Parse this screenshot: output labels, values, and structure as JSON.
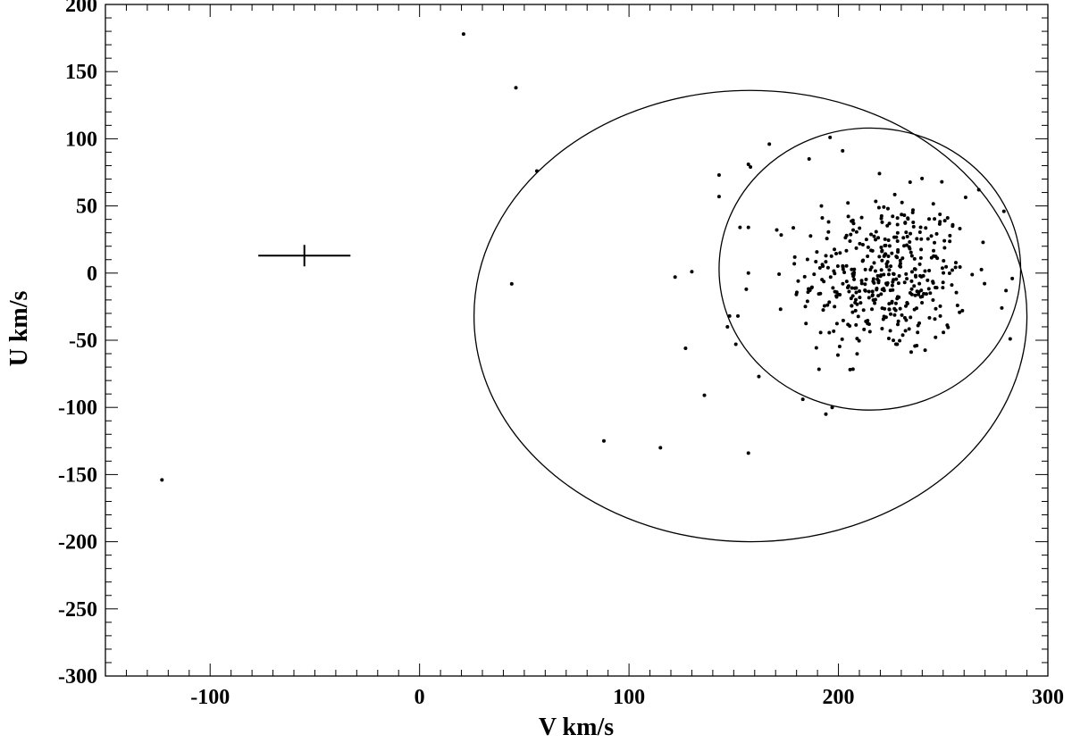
{
  "chart_data": {
    "type": "scatter",
    "title": "",
    "xlabel": "V km/s",
    "ylabel": "U km/s",
    "xlim": [
      -150,
      300
    ],
    "ylim": [
      -300,
      200
    ],
    "x_major_ticks": [
      -100,
      0,
      100,
      200,
      300
    ],
    "x_tick_labels": [
      "-100",
      "0",
      "100",
      "200",
      "300"
    ],
    "y_major_ticks": [
      200,
      150,
      100,
      50,
      0,
      -50,
      -100,
      -150,
      -200,
      -250,
      -300
    ],
    "y_tick_labels": [
      "200",
      "150",
      "100",
      "50",
      "0",
      "-50",
      "-100",
      "-150",
      "-200",
      "-250",
      "-300"
    ],
    "grid": false,
    "marker_color": "#000000",
    "ellipses": [
      {
        "name": "thick-disk-ellipse",
        "center": [
          158,
          -32
        ],
        "semi_axis_v": 132,
        "semi_axis_u": 168
      },
      {
        "name": "thin-disk-ellipse",
        "center": [
          215,
          3
        ],
        "semi_axis_v": 72,
        "semi_axis_u": 105
      }
    ],
    "error_bar": {
      "center": [
        -55,
        13
      ],
      "v_range": [
        -77,
        -33
      ],
      "u_range": [
        5,
        21
      ]
    },
    "outliers": [
      [
        21,
        178
      ],
      [
        46,
        138
      ],
      [
        56,
        76
      ],
      [
        44,
        -8
      ],
      [
        -123,
        -154
      ],
      [
        88,
        -125
      ],
      [
        115,
        -130
      ],
      [
        157,
        -134
      ],
      [
        127,
        -56
      ],
      [
        136,
        -91
      ],
      [
        122,
        -3
      ],
      [
        130,
        1
      ],
      [
        143,
        73
      ],
      [
        143,
        57
      ],
      [
        157,
        81
      ],
      [
        158,
        79
      ],
      [
        167,
        96
      ],
      [
        186,
        85
      ],
      [
        196,
        101
      ],
      [
        202,
        91
      ],
      [
        148,
        -32
      ],
      [
        152,
        -32
      ],
      [
        151,
        -53
      ],
      [
        162,
        -77
      ],
      [
        183,
        -94
      ],
      [
        194,
        -105
      ],
      [
        197,
        -100
      ],
      [
        147,
        -40
      ],
      [
        156,
        -12
      ],
      [
        157,
        34
      ],
      [
        157,
        0
      ],
      [
        153,
        34
      ],
      [
        267,
        62
      ],
      [
        279,
        46
      ],
      [
        280,
        -13
      ],
      [
        282,
        -49
      ],
      [
        283,
        -4
      ],
      [
        278,
        -26
      ]
    ],
    "cluster": {
      "center": [
        222,
        -2
      ],
      "spread": [
        20,
        30
      ],
      "count": 420,
      "bounds_v": [
        170,
        270
      ],
      "bounds_u": [
        -85,
        90
      ]
    }
  }
}
